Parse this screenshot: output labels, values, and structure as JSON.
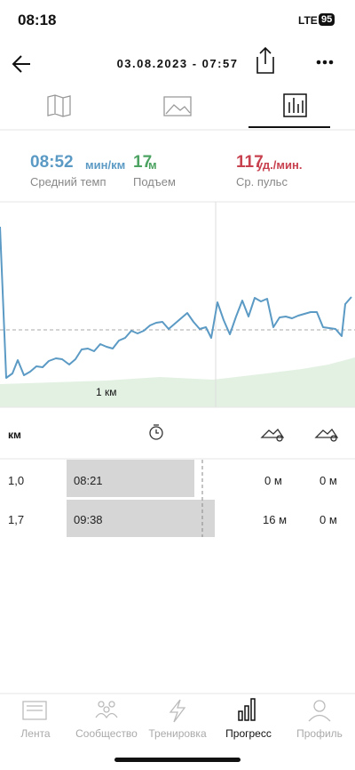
{
  "status_bar": {
    "time": "08:18",
    "network": "LTE",
    "battery": "95"
  },
  "header": {
    "title": "03.08.2023 - 07:57"
  },
  "stats": [
    {
      "value": "08:52",
      "unit": "мин/км",
      "label": "Средний темп"
    },
    {
      "value": "17",
      "unit": "м",
      "label": "Подъем"
    },
    {
      "value": "117",
      "unit": "уд./мин.",
      "label": "Ср. пульс"
    }
  ],
  "chart": {
    "marker_label": "1 км"
  },
  "splits": {
    "header": "км",
    "rows": [
      [
        "1,0",
        "08:21",
        "0 м",
        "0 м"
      ],
      [
        "1,7",
        "09:38",
        "16 м",
        "0 м"
      ]
    ]
  },
  "nav": [
    "Лента",
    "Сообщество",
    "Тренировка",
    "Прогресс",
    "Профиль"
  ]
}
